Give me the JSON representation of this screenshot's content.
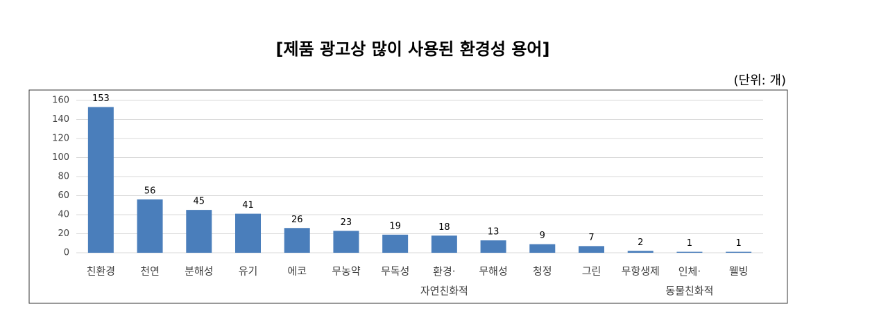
{
  "chart_data": {
    "type": "bar",
    "title": "[제품 광고상 많이 사용된 환경성 용어]",
    "unit": "(단위: 개)",
    "categories": [
      "친환경",
      "천연",
      "분해성",
      "유기",
      "에코",
      "무농약",
      "무독성",
      "환경·\n자연친화적",
      "무해성",
      "청정",
      "그린",
      "무항생제",
      "인체·\n동물친화적",
      "웰빙"
    ],
    "values": [
      153,
      56,
      45,
      41,
      26,
      23,
      19,
      18,
      13,
      9,
      7,
      2,
      1,
      1
    ],
    "color": "#4a7ebb",
    "ylim": [
      0,
      160
    ],
    "yticks": [
      0,
      20,
      40,
      60,
      80,
      100,
      120,
      140,
      160
    ],
    "grid": true
  }
}
